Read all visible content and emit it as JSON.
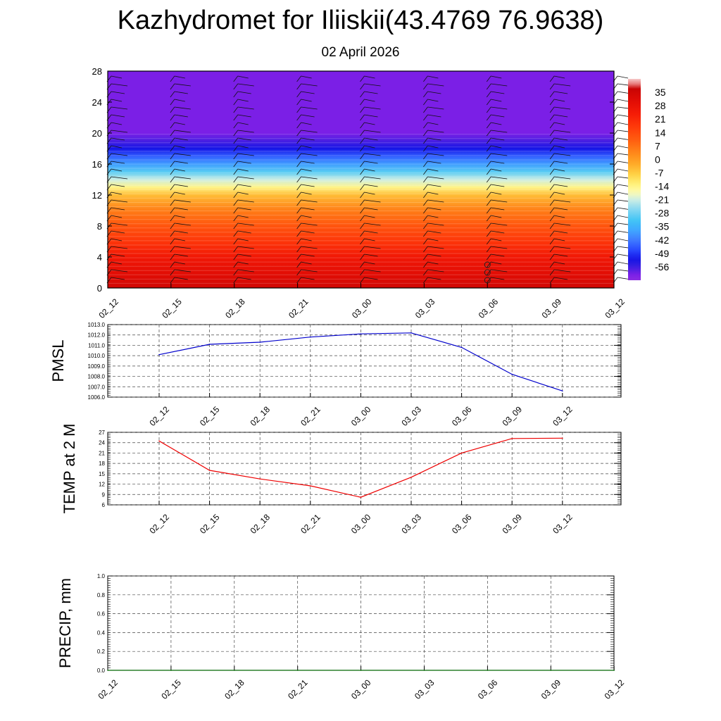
{
  "title": "Kazhydromet for Iliiskii(43.4769 76.9638)",
  "subtitle": "02 April 2026",
  "chart_data": [
    {
      "type": "heatmap",
      "name": "vertical-cross-section",
      "xlabel": "",
      "ylabel": "",
      "x_ticks": [
        "02_12",
        "02_15",
        "02_18",
        "02_21",
        "03_00",
        "03_03",
        "03_06",
        "03_09",
        "03_12"
      ],
      "y_ticks": [
        0,
        4,
        8,
        12,
        16,
        20,
        24,
        28
      ],
      "ylim": [
        0,
        28
      ],
      "colorbar_labels": [
        35,
        28,
        21,
        14,
        7,
        0,
        -7,
        -14,
        -21,
        -28,
        -35,
        -42,
        -49,
        -56
      ],
      "colorbar_range": [
        -63,
        42
      ],
      "temperature_profile": [
        {
          "level": 0,
          "value": 35
        },
        {
          "level": 2,
          "value": 30
        },
        {
          "level": 4,
          "value": 25
        },
        {
          "level": 6,
          "value": 18
        },
        {
          "level": 8,
          "value": 12
        },
        {
          "level": 10,
          "value": 5
        },
        {
          "level": 12,
          "value": -5
        },
        {
          "level": 13,
          "value": -14
        },
        {
          "level": 14,
          "value": -21
        },
        {
          "level": 15,
          "value": -30
        },
        {
          "level": 16,
          "value": -38
        },
        {
          "level": 17,
          "value": -45
        },
        {
          "level": 18,
          "value": -52
        },
        {
          "level": 19,
          "value": -57
        },
        {
          "level": 20,
          "value": -60
        },
        {
          "level": 28,
          "value": -60
        }
      ],
      "annotations": [
        "wind barbs",
        "markers near 03_06 at low levels"
      ]
    },
    {
      "type": "line",
      "name": "pmsl",
      "ylabel": "PMSL",
      "categories": [
        "02_12",
        "02_15",
        "02_18",
        "02_21",
        "03_00",
        "03_03",
        "03_06",
        "03_09",
        "03_12"
      ],
      "values": [
        1010.1,
        1011.1,
        1011.3,
        1011.8,
        1012.1,
        1012.2,
        1010.8,
        1008.2,
        1006.6
      ],
      "ylim": [
        1006.0,
        1013.0
      ],
      "y_ticks": [
        "1006.0",
        "1007.0",
        "1008.0",
        "1009.0",
        "1010.0",
        "1011.0",
        "1012.0",
        "1013.0"
      ],
      "color": "#0000cc"
    },
    {
      "type": "line",
      "name": "temp-2m",
      "ylabel": "TEMP at 2 M",
      "categories": [
        "02_12",
        "02_15",
        "02_18",
        "02_21",
        "03_00",
        "03_03",
        "03_06",
        "03_09",
        "03_12"
      ],
      "values": [
        24.5,
        16.0,
        13.5,
        11.5,
        8.2,
        14.0,
        21.0,
        25.2,
        25.3
      ],
      "ylim": [
        6,
        27
      ],
      "y_ticks": [
        "6",
        "9",
        "12",
        "15",
        "18",
        "21",
        "24",
        "27"
      ],
      "color": "#ee0000"
    },
    {
      "type": "line",
      "name": "precip",
      "ylabel": "PRECIP, mm",
      "x_ticks": [
        "02_12",
        "02_15",
        "02_18",
        "02_21",
        "03_00",
        "03_03",
        "03_06",
        "03_09",
        "03_12"
      ],
      "values": [
        0,
        0,
        0,
        0,
        0,
        0,
        0,
        0,
        0
      ],
      "ylim": [
        0,
        1
      ],
      "y_ticks": [
        "0.0",
        "0.2",
        "0.4",
        "0.6",
        "0.8",
        "1.0"
      ],
      "color": "#006600"
    }
  ]
}
